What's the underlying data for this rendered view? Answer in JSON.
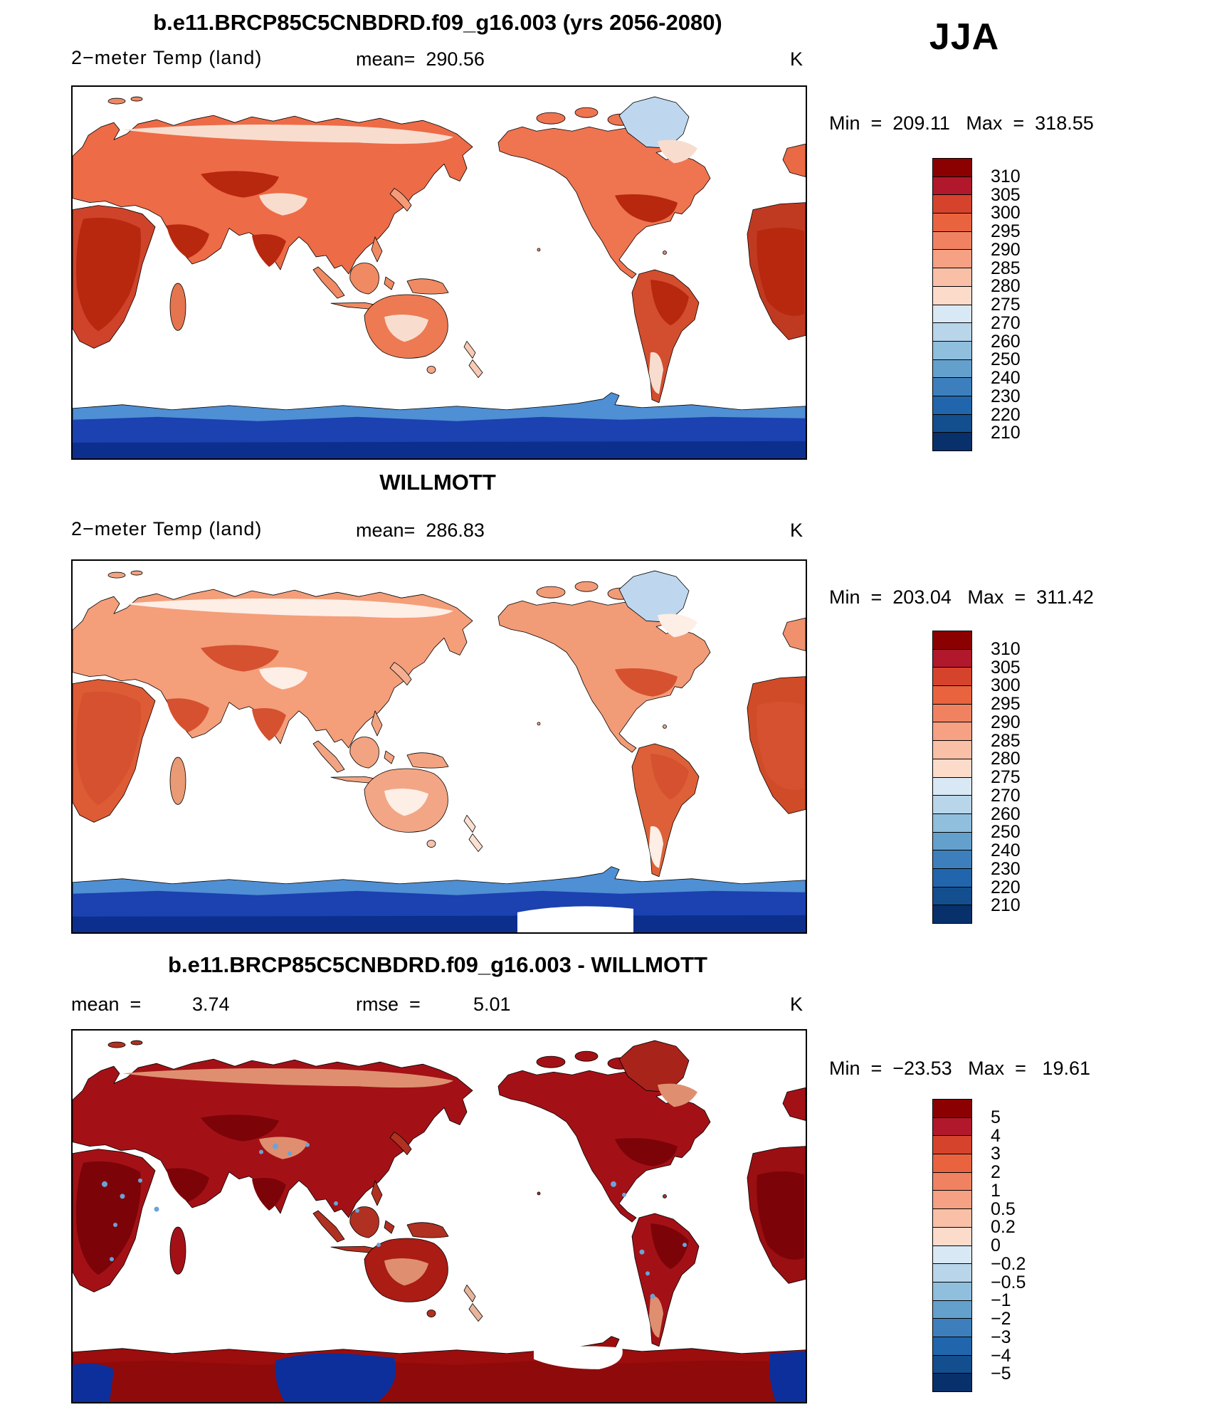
{
  "labels": {
    "mean_prefix": "mean=  ",
    "mean_prefix_diff": "mean  =",
    "rmse_prefix": "rmse  =",
    "min_prefix": "Min  =  ",
    "max_prefix": "   Max  =  "
  },
  "chart_data": {
    "type": "heatmap",
    "season": "JJA",
    "unit": "K",
    "panels": [
      {
        "title": "b.e11.BRCP85C5CNBDRD.f09_g16.003 (yrs 2056-2080)",
        "variable": "2−meter Temp (land)",
        "mean": "290.56",
        "min": "209.11",
        "max": "318.55",
        "colorbar_ticks_top_to_bottom": [
          "310",
          "305",
          "300",
          "295",
          "290",
          "285",
          "280",
          "275",
          "270",
          "260",
          "250",
          "240",
          "230",
          "220",
          "210"
        ]
      },
      {
        "title": "WILLMOTT",
        "variable": "2−meter Temp (land)",
        "mean": "286.83",
        "min": "203.04",
        "max": "311.42",
        "colorbar_ticks_top_to_bottom": [
          "310",
          "305",
          "300",
          "295",
          "290",
          "285",
          "280",
          "275",
          "270",
          "260",
          "250",
          "240",
          "230",
          "220",
          "210"
        ]
      },
      {
        "title": "b.e11.BRCP85C5CNBDRD.f09_g16.003 - WILLMOTT",
        "mean": "3.74",
        "rmse": "5.01",
        "min": "−23.53",
        "max": " 19.61",
        "colorbar_ticks_top_to_bottom": [
          "5",
          "4",
          "3",
          "2",
          "1",
          "0.5",
          "0.2",
          "0",
          "−0.2",
          "−0.5",
          "−1",
          "−2",
          "−3",
          "−4",
          "−5"
        ]
      }
    ],
    "colorbar_palette_top_to_bottom": [
      "#8b0000",
      "#b2182b",
      "#d6432c",
      "#e9633f",
      "#f08262",
      "#f6a183",
      "#fac0a7",
      "#fcdbcb",
      "#d9e8f5",
      "#b8d5ea",
      "#90bedd",
      "#64a0cc",
      "#3d7fbd",
      "#2166ac",
      "#134e8f",
      "#08306b"
    ]
  }
}
